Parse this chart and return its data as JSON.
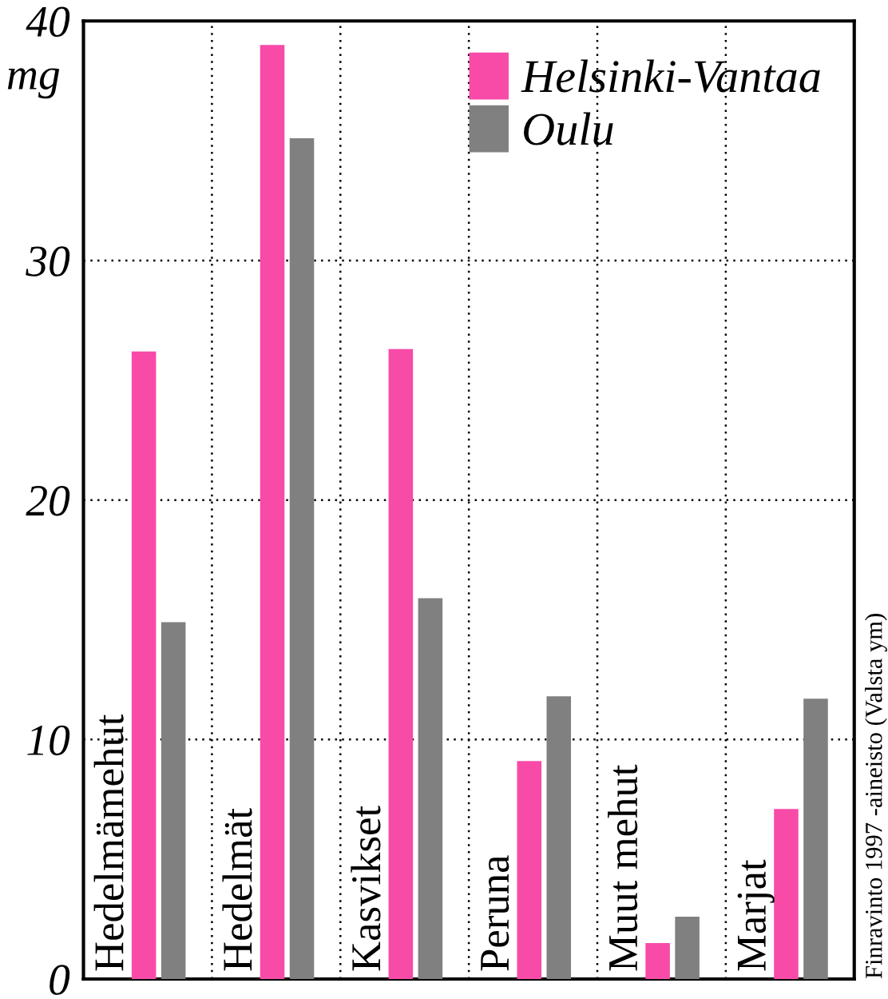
{
  "chart_data": {
    "type": "bar",
    "categories": [
      "Hedelmämehut",
      "Hedelmät",
      "Kasvikset",
      "Peruna",
      "Muut mehut",
      "Marjat"
    ],
    "series": [
      {
        "name": "Helsinki-Vantaa",
        "color": "#f84ba8",
        "values": [
          26.2,
          39.0,
          26.3,
          9.1,
          1.5,
          7.1
        ]
      },
      {
        "name": "Oulu",
        "color": "#808080",
        "values": [
          14.9,
          35.1,
          15.9,
          11.8,
          2.6,
          11.7
        ]
      }
    ],
    "ylabel": "mg",
    "ylim": [
      0,
      40
    ],
    "yticks": [
      0,
      10,
      20,
      30,
      40
    ],
    "grid": true,
    "legend": "top right",
    "annotations": [
      "Finravinto 1997 -aineisto (Valsta ym)"
    ]
  }
}
